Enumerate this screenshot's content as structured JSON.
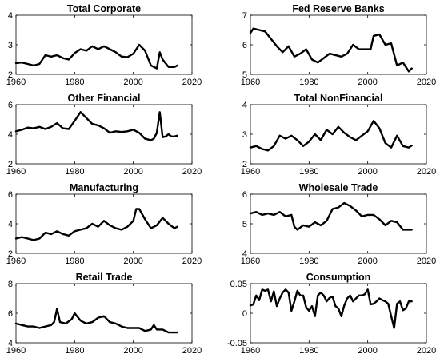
{
  "chart_data": [
    {
      "type": "line",
      "title": "Total Corporate",
      "xlim": [
        1960,
        2020
      ],
      "ylim": [
        2,
        4
      ],
      "xticks": [
        "1960",
        "1980",
        "2000",
        "2020"
      ],
      "yticks": [
        "2",
        "3",
        "4"
      ],
      "x": [
        1960,
        1962,
        1964,
        1966,
        1968,
        1970,
        1972,
        1974,
        1976,
        1978,
        1980,
        1982,
        1984,
        1986,
        1988,
        1990,
        1992,
        1994,
        1996,
        1998,
        2000,
        2002,
        2004,
        2006,
        2008,
        2009,
        2010,
        2012,
        2014,
        2015
      ],
      "y": [
        2.38,
        2.4,
        2.35,
        2.3,
        2.35,
        2.65,
        2.6,
        2.65,
        2.55,
        2.5,
        2.72,
        2.85,
        2.8,
        2.95,
        2.85,
        2.95,
        2.85,
        2.75,
        2.6,
        2.58,
        2.7,
        3.0,
        2.8,
        2.3,
        2.2,
        2.75,
        2.5,
        2.25,
        2.25,
        2.3
      ]
    },
    {
      "type": "line",
      "title": "Fed Reserve Banks",
      "xlim": [
        1960,
        2020
      ],
      "ylim": [
        5,
        7
      ],
      "xticks": [
        "1960",
        "1980",
        "2000",
        "2020"
      ],
      "yticks": [
        "5",
        "6",
        "7"
      ],
      "x": [
        1960,
        1961,
        1963,
        1965,
        1967,
        1969,
        1971,
        1973,
        1975,
        1977,
        1979,
        1981,
        1983,
        1985,
        1987,
        1989,
        1991,
        1993,
        1995,
        1997,
        1999,
        2001,
        2002,
        2004,
        2006,
        2008,
        2010,
        2012,
        2014,
        2015
      ],
      "y": [
        6.4,
        6.55,
        6.5,
        6.45,
        6.2,
        5.95,
        5.75,
        5.95,
        5.6,
        5.7,
        5.85,
        5.5,
        5.4,
        5.55,
        5.7,
        5.65,
        5.6,
        5.7,
        6.0,
        5.85,
        5.85,
        5.85,
        6.3,
        6.35,
        6.0,
        6.05,
        5.3,
        5.4,
        5.1,
        5.2
      ]
    },
    {
      "type": "line",
      "title": "Other Financial",
      "xlim": [
        1960,
        2020
      ],
      "ylim": [
        2,
        6
      ],
      "xticks": [
        "1960",
        "1980",
        "2000",
        "2020"
      ],
      "yticks": [
        "2",
        "4",
        "6"
      ],
      "x": [
        1960,
        1962,
        1964,
        1966,
        1968,
        1970,
        1972,
        1974,
        1976,
        1978,
        1980,
        1982,
        1984,
        1986,
        1988,
        1990,
        1992,
        1994,
        1996,
        1998,
        2000,
        2002,
        2004,
        2006,
        2007,
        2008,
        2009,
        2010,
        2011,
        2012,
        2013,
        2014,
        2015
      ],
      "y": [
        4.2,
        4.3,
        4.45,
        4.4,
        4.5,
        4.35,
        4.5,
        4.75,
        4.4,
        4.35,
        4.9,
        5.5,
        5.1,
        4.7,
        4.6,
        4.4,
        4.1,
        4.2,
        4.15,
        4.2,
        4.3,
        4.1,
        3.7,
        3.6,
        3.7,
        4.1,
        5.5,
        3.8,
        3.85,
        4.0,
        3.85,
        3.85,
        3.9
      ]
    },
    {
      "type": "line",
      "title": "Total NonFinancial",
      "xlim": [
        1960,
        2020
      ],
      "ylim": [
        2,
        4
      ],
      "xticks": [
        "1960",
        "1980",
        "2000",
        "2020"
      ],
      "yticks": [
        "2",
        "3",
        "4"
      ],
      "x": [
        1960,
        1962,
        1964,
        1966,
        1968,
        1970,
        1972,
        1974,
        1976,
        1978,
        1980,
        1982,
        1984,
        1986,
        1988,
        1990,
        1992,
        1994,
        1996,
        1998,
        2000,
        2002,
        2004,
        2006,
        2008,
        2010,
        2012,
        2014,
        2015
      ],
      "y": [
        2.55,
        2.6,
        2.5,
        2.45,
        2.6,
        2.95,
        2.85,
        2.95,
        2.8,
        2.6,
        2.75,
        3.0,
        2.8,
        3.15,
        3.0,
        3.25,
        3.05,
        2.9,
        2.8,
        2.95,
        3.1,
        3.45,
        3.2,
        2.7,
        2.55,
        2.95,
        2.6,
        2.55,
        2.62
      ]
    },
    {
      "type": "line",
      "title": "Manufacturing",
      "xlim": [
        1960,
        2020
      ],
      "ylim": [
        2,
        6
      ],
      "xticks": [
        "1960",
        "1980",
        "2000",
        "2020"
      ],
      "yticks": [
        "2",
        "4",
        "6"
      ],
      "x": [
        1960,
        1962,
        1964,
        1966,
        1968,
        1970,
        1972,
        1974,
        1976,
        1978,
        1980,
        1982,
        1984,
        1986,
        1988,
        1990,
        1992,
        1994,
        1996,
        1998,
        2000,
        2001,
        2002,
        2004,
        2006,
        2008,
        2010,
        2012,
        2014,
        2015
      ],
      "y": [
        3.0,
        3.1,
        3.0,
        2.9,
        3.0,
        3.4,
        3.3,
        3.5,
        3.3,
        3.2,
        3.5,
        3.6,
        3.7,
        4.0,
        3.8,
        4.2,
        3.9,
        3.7,
        3.6,
        3.8,
        4.2,
        5.0,
        5.0,
        4.3,
        3.7,
        3.9,
        4.4,
        4.0,
        3.7,
        3.8
      ]
    },
    {
      "type": "line",
      "title": "Wholesale Trade",
      "xlim": [
        1960,
        2020
      ],
      "ylim": [
        4,
        6
      ],
      "xticks": [
        "1960",
        "1980",
        "2000",
        "2020"
      ],
      "yticks": [
        "4",
        "5",
        "6"
      ],
      "x": [
        1960,
        1962,
        1964,
        1966,
        1968,
        1970,
        1972,
        1974,
        1975,
        1976,
        1978,
        1980,
        1982,
        1984,
        1986,
        1988,
        1990,
        1992,
        1994,
        1996,
        1998,
        2000,
        2002,
        2004,
        2006,
        2008,
        2010,
        2012,
        2014,
        2015
      ],
      "y": [
        5.35,
        5.4,
        5.3,
        5.35,
        5.3,
        5.4,
        5.25,
        5.3,
        4.9,
        4.8,
        4.95,
        4.9,
        5.05,
        4.95,
        5.1,
        5.5,
        5.55,
        5.7,
        5.6,
        5.45,
        5.25,
        5.3,
        5.3,
        5.15,
        4.95,
        5.1,
        5.05,
        4.8,
        4.8,
        4.8
      ]
    },
    {
      "type": "line",
      "title": "Retail Trade",
      "xlim": [
        1960,
        2020
      ],
      "ylim": [
        4,
        8
      ],
      "xticks": [
        "1960",
        "1980",
        "2000",
        "2020"
      ],
      "yticks": [
        "4",
        "6",
        "8"
      ],
      "x": [
        1960,
        1962,
        1964,
        1966,
        1968,
        1970,
        1972,
        1973,
        1974,
        1975,
        1977,
        1979,
        1980,
        1982,
        1984,
        1986,
        1988,
        1990,
        1992,
        1994,
        1996,
        1998,
        2000,
        2002,
        2004,
        2006,
        2007,
        2008,
        2010,
        2012,
        2014,
        2015
      ],
      "y": [
        5.3,
        5.2,
        5.1,
        5.1,
        5.0,
        5.1,
        5.2,
        5.4,
        6.3,
        5.4,
        5.3,
        5.6,
        6.0,
        5.5,
        5.3,
        5.4,
        5.7,
        5.8,
        5.4,
        5.3,
        5.1,
        5.0,
        5.0,
        5.0,
        4.8,
        4.9,
        5.2,
        4.9,
        4.9,
        4.7,
        4.7,
        4.7
      ]
    },
    {
      "type": "line",
      "title": "Consumption",
      "xlim": [
        1960,
        2020
      ],
      "ylim": [
        -0.05,
        0.05
      ],
      "xticks": [
        "1960",
        "1980",
        "2000",
        "2020"
      ],
      "yticks": [
        "-0.05",
        "0",
        "0.05"
      ],
      "x": [
        1960,
        1961,
        1962,
        1963,
        1964,
        1965,
        1966,
        1967,
        1968,
        1969,
        1970,
        1971,
        1972,
        1973,
        1974,
        1975,
        1976,
        1977,
        1978,
        1979,
        1980,
        1981,
        1982,
        1983,
        1984,
        1985,
        1986,
        1987,
        1988,
        1989,
        1990,
        1991,
        1992,
        1993,
        1994,
        1995,
        1996,
        1997,
        1998,
        1999,
        2000,
        2001,
        2002,
        2003,
        2004,
        2005,
        2006,
        2007,
        2008,
        2009,
        2010,
        2011,
        2012,
        2013,
        2014,
        2015
      ],
      "y": [
        0.013,
        0.015,
        0.03,
        0.022,
        0.04,
        0.038,
        0.04,
        0.02,
        0.037,
        0.012,
        0.025,
        0.035,
        0.04,
        0.035,
        0.004,
        0.02,
        0.038,
        0.03,
        0.03,
        0.01,
        0.004,
        0.012,
        -0.005,
        0.03,
        0.035,
        0.03,
        0.02,
        0.026,
        0.028,
        0.012,
        0.008,
        -0.005,
        0.013,
        0.025,
        0.03,
        0.02,
        0.025,
        0.03,
        0.03,
        0.032,
        0.04,
        0.015,
        0.016,
        0.02,
        0.025,
        0.022,
        0.02,
        0.016,
        -0.005,
        -0.025,
        0.016,
        0.02,
        0.005,
        0.008,
        0.02,
        0.02
      ]
    }
  ]
}
